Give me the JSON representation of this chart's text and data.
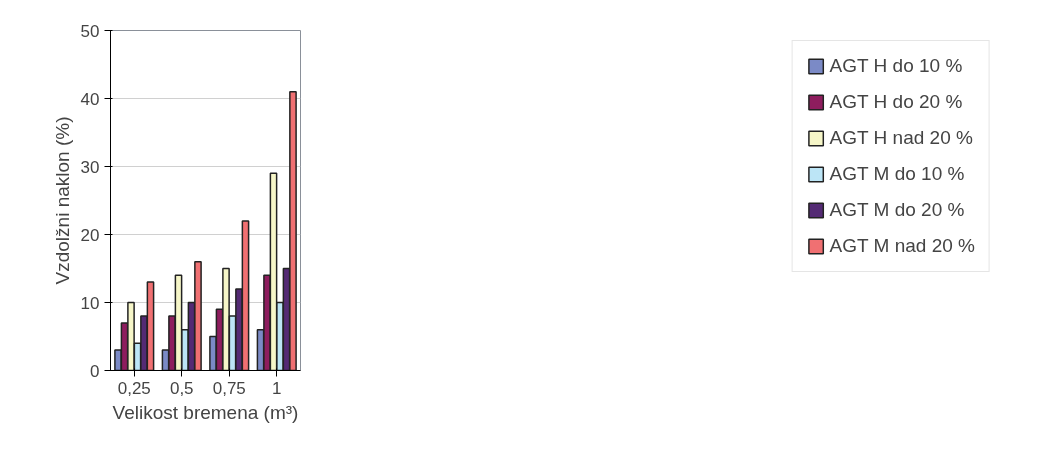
{
  "chart_data": {
    "type": "bar",
    "xlabel": "Velikost bremena (m³)",
    "ylabel": "Vzdolžni naklon (%)",
    "categories": [
      "0,25",
      "0,5",
      "0,75",
      "1"
    ],
    "series": [
      {
        "name": "AGT H do 10 %",
        "color": "#7b8ac6",
        "values": [
          3,
          3,
          5,
          6
        ]
      },
      {
        "name": "AGT H do 20 %",
        "color": "#8e1d5e",
        "values": [
          7,
          8,
          9,
          14
        ]
      },
      {
        "name": "AGT H nad 20 %",
        "color": "#f6f6c8",
        "values": [
          10,
          14,
          15,
          29
        ]
      },
      {
        "name": "AGT M do 10 %",
        "color": "#bce5f6",
        "values": [
          4,
          6,
          8,
          10
        ]
      },
      {
        "name": "AGT M do 20 %",
        "color": "#542a74",
        "values": [
          8,
          10,
          12,
          15
        ]
      },
      {
        "name": "AGT M nad 20 %",
        "color": "#f07072",
        "values": [
          13,
          16,
          22,
          41
        ]
      }
    ],
    "ylim": [
      0,
      50
    ],
    "yticks": [
      0,
      10,
      20,
      30,
      40,
      50
    ],
    "grid": "y",
    "legend": "right"
  }
}
